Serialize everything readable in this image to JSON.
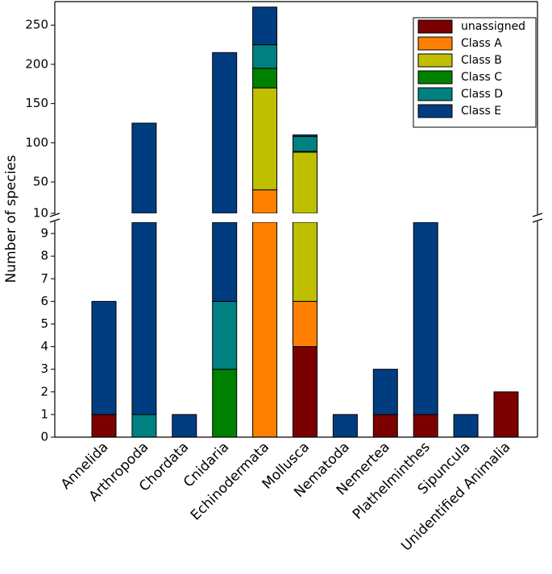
{
  "chart_data": {
    "type": "stacked_bar_broken_axis",
    "y_label": "Number of species",
    "categories": [
      "Annelida",
      "Arthropoda",
      "Chordata",
      "Cnidaria",
      "Echinodermata",
      "Mollusca",
      "Nematoda",
      "Nemertea",
      "Plathelminthes",
      "Sipuncula",
      "Unidentified Animalia"
    ],
    "series": [
      {
        "name": "unassigned",
        "color": "#7b0000",
        "values": [
          1,
          0,
          0,
          0,
          0,
          4,
          0,
          1,
          1,
          0,
          2
        ]
      },
      {
        "name": "Class A",
        "color": "#ff8000",
        "values": [
          0,
          0,
          0,
          0,
          40,
          2,
          0,
          0,
          0,
          0,
          0
        ]
      },
      {
        "name": "Class B",
        "color": "#bfbf00",
        "values": [
          0,
          0,
          0,
          0,
          130,
          82,
          0,
          0,
          0,
          0,
          0
        ]
      },
      {
        "name": "Class C",
        "color": "#008000",
        "values": [
          0,
          0,
          0,
          3,
          25,
          1,
          0,
          0,
          0,
          0,
          0
        ]
      },
      {
        "name": "Class D",
        "color": "#008080",
        "values": [
          0,
          1,
          0,
          3,
          30,
          19,
          0,
          0,
          0,
          0,
          0
        ]
      },
      {
        "name": "Class E",
        "color": "#003c80",
        "values": [
          5,
          124,
          1,
          209,
          48,
          2,
          1,
          2,
          9,
          1,
          0
        ]
      }
    ],
    "axis_break": {
      "lower": {
        "ylim": [
          0,
          9.5
        ],
        "yticks": [
          0,
          1,
          2,
          3,
          4,
          5,
          6,
          7,
          8,
          9
        ]
      },
      "upper": {
        "ylim": [
          10,
          280
        ],
        "yticks": [
          10,
          50,
          100,
          150,
          200,
          250
        ]
      }
    },
    "legend": "upper right"
  }
}
